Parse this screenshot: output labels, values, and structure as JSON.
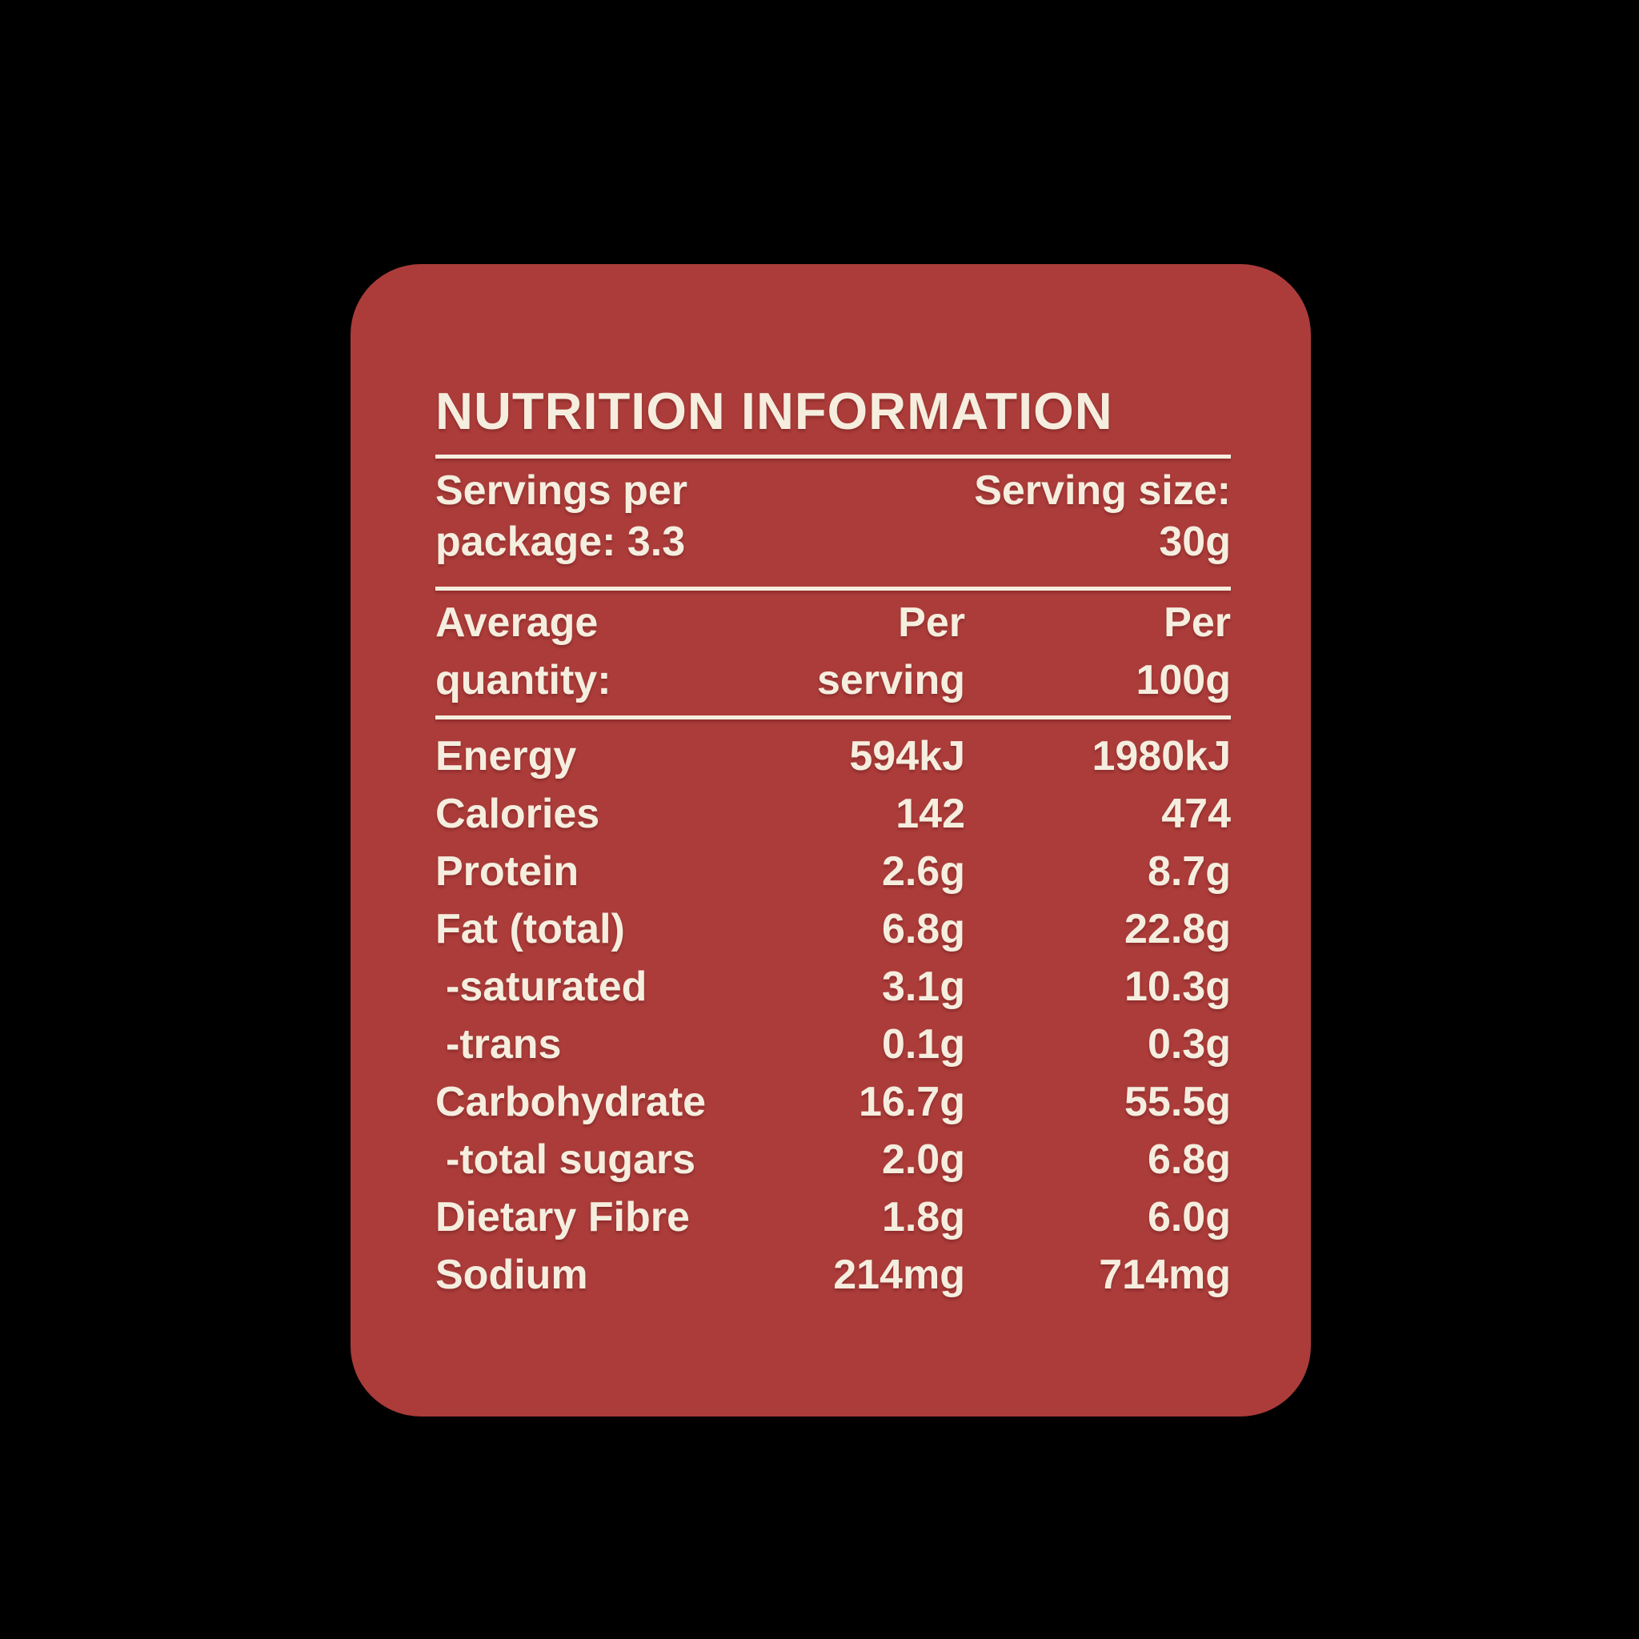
{
  "colors": {
    "background": "#000000",
    "card_red": "#AB3C3A",
    "text_cream": "#F5EEDF"
  },
  "label": {
    "title": "NUTRITION INFORMATION",
    "servings_per_package": {
      "line1": "Servings per",
      "line2": "package: 3.3"
    },
    "serving_size": {
      "line1": "Serving size:",
      "line2": "30g"
    },
    "header": {
      "quantity": {
        "line1": "Average",
        "line2": "quantity:"
      },
      "per_serving": {
        "line1": "Per",
        "line2": "serving"
      },
      "per_100g": {
        "line1": "Per",
        "line2": "100g"
      }
    },
    "rows": [
      {
        "label": "Energy",
        "per_serving": "594kJ",
        "per_100g": "1980kJ"
      },
      {
        "label": "Calories",
        "per_serving": "142",
        "per_100g": "474"
      },
      {
        "label": "Protein",
        "per_serving": "2.6g",
        "per_100g": "8.7g"
      },
      {
        "label": "Fat (total)",
        "per_serving": "6.8g",
        "per_100g": "22.8g"
      },
      {
        "label": "-saturated",
        "per_serving": "3.1g",
        "per_100g": "10.3g"
      },
      {
        "label": "-trans",
        "per_serving": "0.1g",
        "per_100g": "0.3g"
      },
      {
        "label": "Carbohydrate",
        "per_serving": "16.7g",
        "per_100g": "55.5g"
      },
      {
        "label": "-total sugars",
        "per_serving": "2.0g",
        "per_100g": "6.8g"
      },
      {
        "label": "Dietary Fibre",
        "per_serving": "1.8g",
        "per_100g": "6.0g"
      },
      {
        "label": "Sodium",
        "per_serving": "214mg",
        "per_100g": "714mg"
      }
    ]
  }
}
